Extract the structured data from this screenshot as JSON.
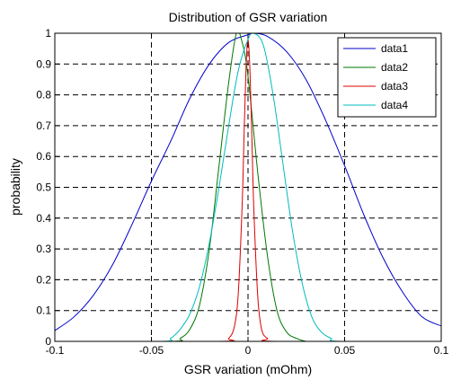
{
  "chart_data": {
    "type": "line",
    "title": "Distribution of GSR variation",
    "xlabel": "GSR variation (mOhm)",
    "ylabel": "probability",
    "xlim": [
      -0.1,
      0.1
    ],
    "ylim": [
      0,
      1
    ],
    "xticks": [
      -0.1,
      -0.05,
      0,
      0.05,
      0.1
    ],
    "xtick_labels": [
      "-0.1",
      "-0.05",
      "0",
      "0.05",
      "0.1"
    ],
    "yticks": [
      0,
      0.1,
      0.2,
      0.3,
      0.4,
      0.5,
      0.6,
      0.7,
      0.8,
      0.9,
      1
    ],
    "ytick_labels": [
      "0",
      "0.1",
      "0.2",
      "0.3",
      "0.4",
      "0.5",
      "0.6",
      "0.7",
      "0.8",
      "0.9",
      "1"
    ],
    "grid": true,
    "legend_position": "top-right",
    "series": [
      {
        "name": "data1",
        "color": "#0000cc",
        "x": [
          -0.1,
          -0.09,
          -0.08,
          -0.07,
          -0.06,
          -0.05,
          -0.04,
          -0.03,
          -0.02,
          -0.01,
          0,
          0.003,
          0.01,
          0.02,
          0.03,
          0.04,
          0.05,
          0.06,
          0.07,
          0.08,
          0.09,
          0.1
        ],
        "y": [
          0.035,
          0.08,
          0.15,
          0.25,
          0.38,
          0.52,
          0.65,
          0.79,
          0.9,
          0.97,
          0.995,
          1.0,
          0.99,
          0.94,
          0.85,
          0.72,
          0.57,
          0.41,
          0.27,
          0.16,
          0.08,
          0.05
        ]
      },
      {
        "name": "data2",
        "color": "#007700",
        "x": [
          -0.04,
          -0.035,
          -0.03,
          -0.025,
          -0.02,
          -0.015,
          -0.01,
          -0.006,
          -0.003,
          0,
          0.005,
          0.01,
          0.015,
          0.02,
          0.025,
          0.03,
          0.035,
          0.04
        ],
        "y": [
          0,
          0.01,
          0.04,
          0.12,
          0.3,
          0.57,
          0.84,
          1.0,
          0.97,
          0.86,
          0.55,
          0.28,
          0.1,
          0.03,
          0.01,
          0,
          0,
          0
        ]
      },
      {
        "name": "data3",
        "color": "#dd0000",
        "x": [
          -0.015,
          -0.01,
          -0.007,
          -0.005,
          -0.003,
          -0.002,
          -0.001,
          0,
          0.001,
          0.002,
          0.003,
          0.005,
          0.007,
          0.01,
          0.015
        ],
        "y": [
          0,
          0.01,
          0.05,
          0.16,
          0.45,
          0.68,
          0.89,
          0.98,
          0.88,
          0.66,
          0.43,
          0.15,
          0.04,
          0.01,
          0
        ]
      },
      {
        "name": "data4",
        "color": "#00bbbb",
        "x": [
          -0.045,
          -0.04,
          -0.035,
          -0.03,
          -0.025,
          -0.02,
          -0.015,
          -0.01,
          -0.005,
          0,
          0.003,
          0.008,
          0.013,
          0.018,
          0.023,
          0.028,
          0.033,
          0.038,
          0.043,
          0.048
        ],
        "y": [
          0,
          0.01,
          0.04,
          0.09,
          0.18,
          0.32,
          0.5,
          0.7,
          0.88,
          0.98,
          1.0,
          0.96,
          0.8,
          0.58,
          0.36,
          0.19,
          0.08,
          0.03,
          0.01,
          0
        ]
      }
    ]
  }
}
